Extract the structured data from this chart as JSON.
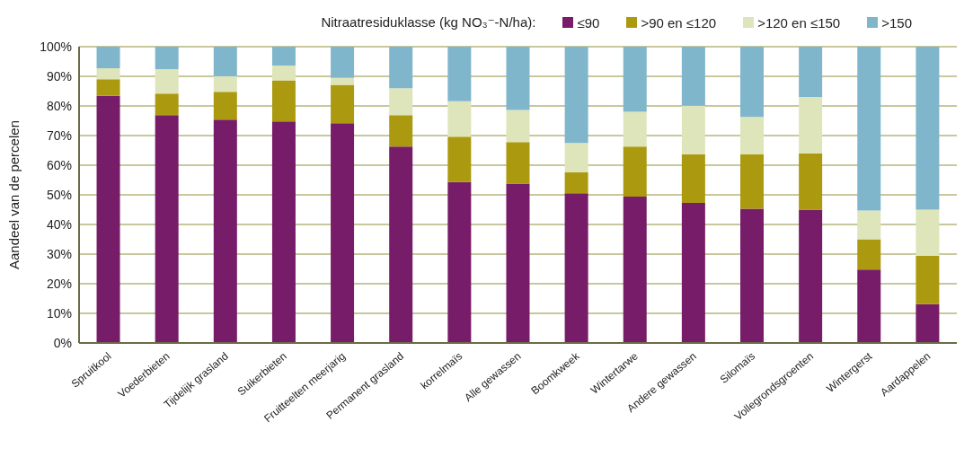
{
  "chart_data": {
    "type": "bar",
    "stacked": true,
    "ylabel": "Aandeel van de percelen",
    "legend_title": "Nitraatresiduklasse (kg NO₃⁻-N/ha):",
    "legend": "top",
    "grid": "y",
    "categories": [
      "Spruitkool",
      "Voederbieten",
      "Tijdelijk grasland",
      "Suikerbieten",
      "Fruitteelten meerjarig",
      "Permanent grasland",
      "korrelmaïs",
      "Alle gewassen",
      "Boomkweek",
      "Wintertarwe",
      "Andere gewassen",
      "Silomaïs",
      "Vollegrondsgroenten",
      "Wintergerst",
      "Aardappelen"
    ],
    "ylim": [
      0,
      100
    ],
    "yticks": [
      {
        "value": 0,
        "label": "0%"
      },
      {
        "value": 10,
        "label": "10%"
      },
      {
        "value": 20,
        "label": "20%"
      },
      {
        "value": 30,
        "label": "30%"
      },
      {
        "value": 40,
        "label": "40%"
      },
      {
        "value": 50,
        "label": "50%"
      },
      {
        "value": 60,
        "label": "60%"
      },
      {
        "value": 70,
        "label": "70%"
      },
      {
        "value": 80,
        "label": "80%"
      },
      {
        "value": 90,
        "label": "90%"
      },
      {
        "value": 100,
        "label": "100%"
      }
    ],
    "series": [
      {
        "name": "≤90",
        "color": "#771c68",
        "values": [
          83.4,
          76.9,
          75.4,
          74.8,
          74.2,
          66.3,
          54.3,
          53.8,
          50.5,
          49.4,
          47.3,
          45.3,
          45.0,
          24.8,
          13.1
        ]
      },
      {
        "name": ">90 en ≤120",
        "color": "#ab9a10",
        "values": [
          5.6,
          7.3,
          9.4,
          13.8,
          12.9,
          10.6,
          15.3,
          14.0,
          7.1,
          16.9,
          16.4,
          18.4,
          19.0,
          10.2,
          16.4
        ]
      },
      {
        "name": ">120 en ≤150",
        "color": "#dfe5ba",
        "values": [
          3.7,
          8.2,
          5.2,
          5.0,
          2.4,
          9.1,
          12.0,
          10.8,
          9.9,
          11.7,
          16.4,
          12.6,
          19.0,
          9.7,
          15.5
        ]
      },
      {
        "name": ">150",
        "color": "#80b6cb",
        "values": [
          7.3,
          7.6,
          10.0,
          6.4,
          10.5,
          14.0,
          18.4,
          21.4,
          32.5,
          22.0,
          19.9,
          23.7,
          17.0,
          55.3,
          55.0
        ]
      }
    ]
  }
}
